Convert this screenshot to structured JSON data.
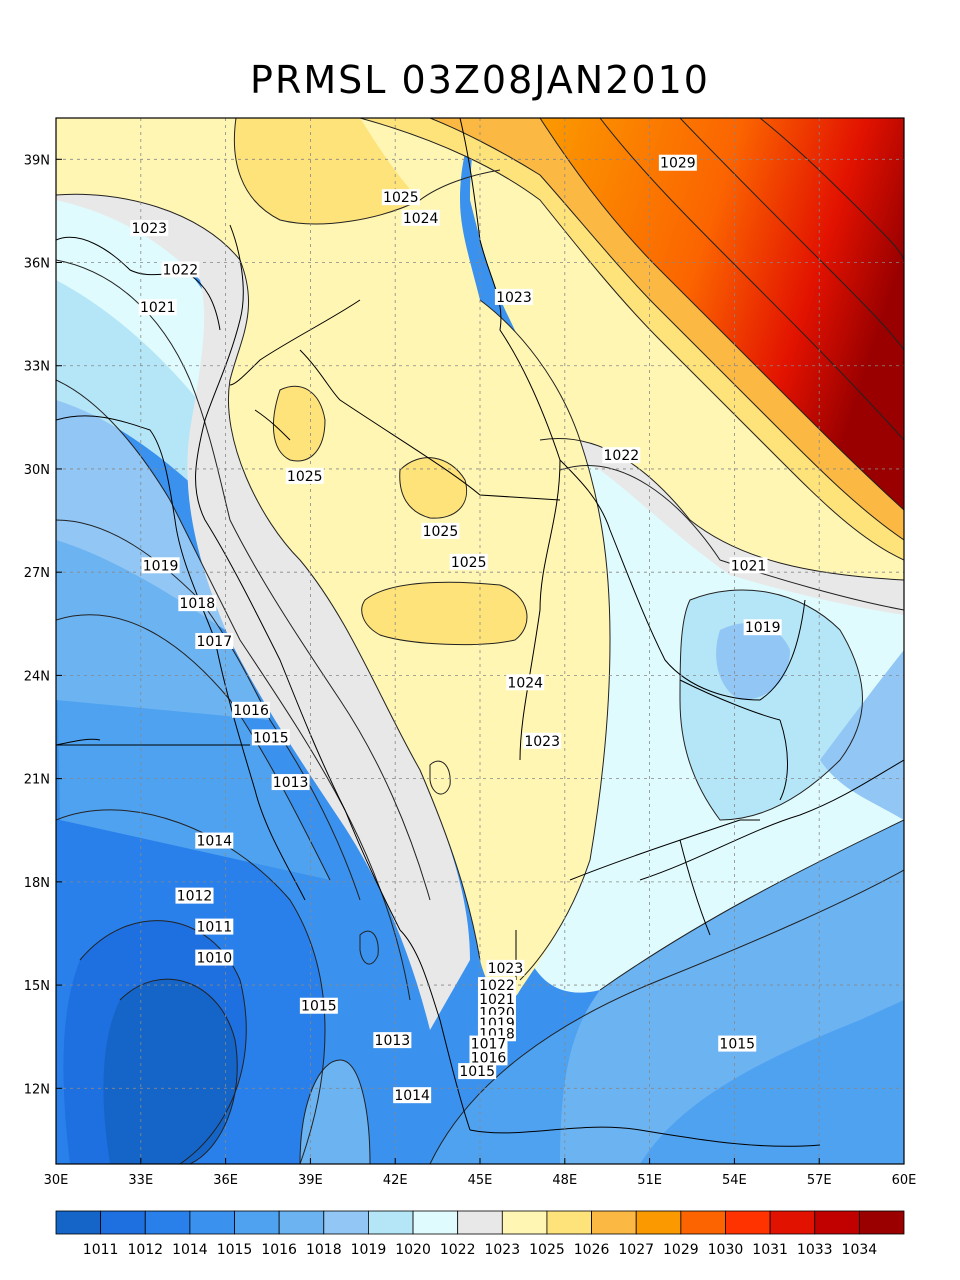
{
  "title": "PRMSL 03Z08JAN2010",
  "x_ticks": [
    "30E",
    "33E",
    "36E",
    "39E",
    "42E",
    "45E",
    "48E",
    "51E",
    "54E",
    "57E",
    "60E"
  ],
  "y_ticks": [
    "39N",
    "36N",
    "33N",
    "30N",
    "27N",
    "24N",
    "21N",
    "18N",
    "15N",
    "12N"
  ],
  "contour_labels": [
    {
      "text": "1029",
      "lon": 52.0,
      "lat": 38.9
    },
    {
      "text": "1025",
      "lon": 42.2,
      "lat": 37.9
    },
    {
      "text": "1024",
      "lon": 42.9,
      "lat": 37.3
    },
    {
      "text": "1023",
      "lon": 33.3,
      "lat": 37.0
    },
    {
      "text": "1022",
      "lon": 34.4,
      "lat": 35.8
    },
    {
      "text": "1021",
      "lon": 33.6,
      "lat": 34.7
    },
    {
      "text": "1023",
      "lon": 46.2,
      "lat": 35.0
    },
    {
      "text": "1025",
      "lon": 38.8,
      "lat": 29.8
    },
    {
      "text": "1025",
      "lon": 43.6,
      "lat": 28.2
    },
    {
      "text": "1025",
      "lon": 44.6,
      "lat": 27.3
    },
    {
      "text": "1022",
      "lon": 50.0,
      "lat": 30.4
    },
    {
      "text": "1021",
      "lon": 54.5,
      "lat": 27.2
    },
    {
      "text": "1019",
      "lon": 55.0,
      "lat": 25.4
    },
    {
      "text": "1019",
      "lon": 33.7,
      "lat": 27.2
    },
    {
      "text": "1018",
      "lon": 35.0,
      "lat": 26.1
    },
    {
      "text": "1017",
      "lon": 35.6,
      "lat": 25.0
    },
    {
      "text": "1016",
      "lon": 36.9,
      "lat": 23.0
    },
    {
      "text": "1015",
      "lon": 37.6,
      "lat": 22.2
    },
    {
      "text": "1024",
      "lon": 46.6,
      "lat": 23.8
    },
    {
      "text": "1023",
      "lon": 47.2,
      "lat": 22.1
    },
    {
      "text": "1013",
      "lon": 38.3,
      "lat": 20.9
    },
    {
      "text": "1014",
      "lon": 35.6,
      "lat": 19.2
    },
    {
      "text": "1012",
      "lon": 34.9,
      "lat": 17.6
    },
    {
      "text": "1011",
      "lon": 35.6,
      "lat": 16.7
    },
    {
      "text": "1010",
      "lon": 35.6,
      "lat": 15.8
    },
    {
      "text": "1023",
      "lon": 45.9,
      "lat": 15.5
    },
    {
      "text": "1022",
      "lon": 45.6,
      "lat": 15.0
    },
    {
      "text": "1021",
      "lon": 45.6,
      "lat": 14.6
    },
    {
      "text": "1020",
      "lon": 45.6,
      "lat": 14.2
    },
    {
      "text": "1019",
      "lon": 45.6,
      "lat": 13.9
    },
    {
      "text": "1018",
      "lon": 45.6,
      "lat": 13.6
    },
    {
      "text": "1017",
      "lon": 45.3,
      "lat": 13.3
    },
    {
      "text": "1016",
      "lon": 45.3,
      "lat": 12.9
    },
    {
      "text": "1015",
      "lon": 44.9,
      "lat": 12.5
    },
    {
      "text": "1015",
      "lon": 39.3,
      "lat": 14.4
    },
    {
      "text": "1013",
      "lon": 41.9,
      "lat": 13.4
    },
    {
      "text": "1014",
      "lon": 42.6,
      "lat": 11.8
    },
    {
      "text": "1015",
      "lon": 54.1,
      "lat": 13.3
    }
  ],
  "colorbar": {
    "colors": [
      "#1565c8",
      "#1e6fe0",
      "#2a80ea",
      "#3a91ee",
      "#4fa2f0",
      "#6cb3f2",
      "#91c6f5",
      "#b5e6f7",
      "#e0fbfd",
      "#e8e8e8",
      "#fff6b3",
      "#fee27a",
      "#fbb943",
      "#fb9a00",
      "#fb6400",
      "#ff3300",
      "#e21200",
      "#c10000",
      "#9a0000"
    ],
    "labels": [
      "1011",
      "1012",
      "1014",
      "1015",
      "1016",
      "1018",
      "1019",
      "1020",
      "1022",
      "1023",
      "1025",
      "1026",
      "1027",
      "1029",
      "1030",
      "1031",
      "1033",
      "1034"
    ]
  }
}
